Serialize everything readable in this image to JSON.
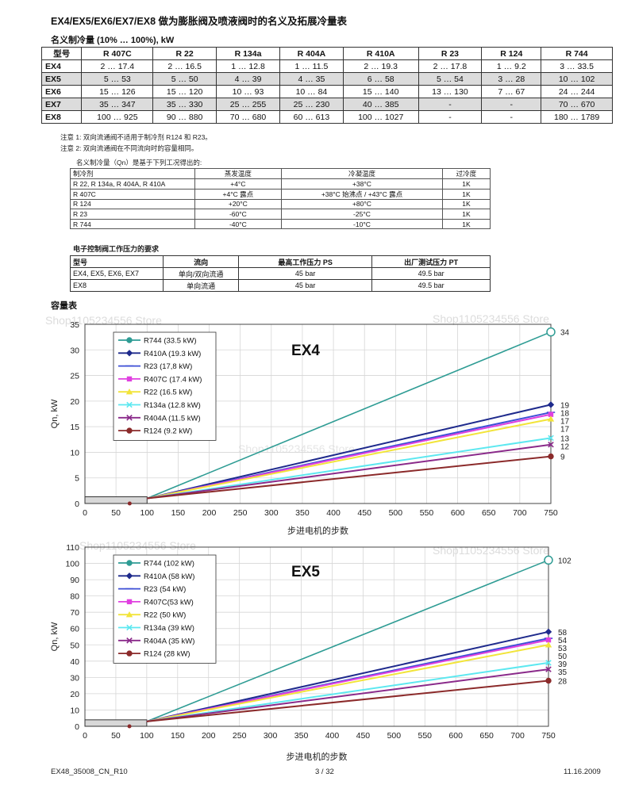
{
  "title": "EX4/EX5/EX6/EX7/EX8 做为膨胀阀及喷液阀时的名义及拓展冷量表",
  "capacity_heading": "名义制冷量 (10% … 100%), kW",
  "capacity_table": {
    "headers": [
      "型号",
      "R 407C",
      "R 22",
      "R 134a",
      "R 404A",
      "R 410A",
      "R 23",
      "R 124",
      "R 744"
    ],
    "rows": [
      [
        "EX4",
        "2 … 17.4",
        "2 … 16.5",
        "1 … 12.8",
        "1 … 11.5",
        "2 … 19.3",
        "2 … 17.8",
        "1 … 9.2",
        "3 … 33.5"
      ],
      [
        "EX5",
        "5 … 53",
        "5 … 50",
        "4 … 39",
        "4 … 35",
        "6 … 58",
        "5 … 54",
        "3 … 28",
        "10 … 102"
      ],
      [
        "EX6",
        "15 … 126",
        "15 … 120",
        "10 … 93",
        "10 … 84",
        "15 … 140",
        "13 … 130",
        "7 … 67",
        "24 … 244"
      ],
      [
        "EX7",
        "35 … 347",
        "35 … 330",
        "25 … 255",
        "25 … 230",
        "40 … 385",
        "-",
        "-",
        "70 … 670"
      ],
      [
        "EX8",
        "100 … 925",
        "90 … 880",
        "70 … 680",
        "60 … 613",
        "100 … 1027",
        "-",
        "-",
        "180 … 1789"
      ]
    ]
  },
  "notes": [
    "注意 1: 双向流通阀不适用于制冷剂 R124 和 R23。",
    "注意 2: 双向流通阀在不同流向时的容量相同。"
  ],
  "conditions_heading": "名义制冷量（Qn）是基于下列工况得出的:",
  "conditions_table": {
    "headers": [
      "制冷剂",
      "蒸发温度",
      "冷凝温度",
      "过冷度"
    ],
    "rows": [
      [
        "R 22, R 134a, R 404A, R 410A",
        "+4°C",
        "+38°C",
        "1K"
      ],
      [
        "R 407C",
        "+4°C 露点",
        "+38°C 始沸点 / +43°C 露点",
        "1K"
      ],
      [
        "R 124",
        "+20°C",
        "+80°C",
        "1K"
      ],
      [
        "R 23",
        "-60°C",
        "-25°C",
        "1K"
      ],
      [
        "R 744",
        "-40°C",
        "-10°C",
        "1K"
      ]
    ]
  },
  "pressure_heading": "电子控制阀工作压力的要求",
  "pressure_table": {
    "headers": [
      "型号",
      "流向",
      "最高工作压力 PS",
      "出厂测试压力 PT"
    ],
    "rows": [
      [
        "EX4, EX5, EX6, EX7",
        "单向/双向流通",
        "45 bar",
        "49.5 bar"
      ],
      [
        "EX8",
        "单向流通",
        "45 bar",
        "49.5 bar"
      ]
    ]
  },
  "chart_section_heading": "容量表",
  "watermark": "Shop1105234556 Store",
  "chart_data": [
    {
      "type": "line",
      "title": "EX4",
      "xlabel": "步进电机的步数",
      "ylabel": "Qn, kW",
      "x_ticks": [
        0,
        50,
        100,
        150,
        200,
        250,
        300,
        350,
        400,
        450,
        500,
        550,
        600,
        650,
        700,
        750
      ],
      "y_ticks": [
        0,
        5,
        10,
        15,
        20,
        25,
        30,
        35
      ],
      "xlim": [
        0,
        750
      ],
      "ylim": [
        0,
        35
      ],
      "legend_position": "top-left",
      "series": [
        {
          "name": "R744 (33.5 kW)",
          "color": "#2e9c94",
          "marker": "circle",
          "x": [
            100,
            750
          ],
          "y": [
            1,
            33.5
          ],
          "end_label": "34"
        },
        {
          "name": "R410A (19.3 kW)",
          "color": "#1e2a8c",
          "marker": "diamond",
          "x": [
            100,
            750
          ],
          "y": [
            1,
            19.3
          ],
          "end_label": "19"
        },
        {
          "name": "R23 (17,8 kW)",
          "color": "#3d4fd6",
          "marker": "line",
          "x": [
            100,
            750
          ],
          "y": [
            1,
            17.8
          ],
          "end_label": "18"
        },
        {
          "name": "R407C (17.4 kW)",
          "color": "#e040e0",
          "marker": "square",
          "x": [
            100,
            750
          ],
          "y": [
            1,
            17.4
          ],
          "end_label": "17"
        },
        {
          "name": "R22 (16.5 kW)",
          "color": "#f2e43a",
          "marker": "triangle",
          "x": [
            100,
            750
          ],
          "y": [
            1,
            16.5
          ],
          "end_label": "17"
        },
        {
          "name": "R134a (12.8 kW)",
          "color": "#5de8f0",
          "marker": "x",
          "x": [
            100,
            750
          ],
          "y": [
            1,
            12.8
          ],
          "end_label": "13"
        },
        {
          "name": "R404A (11.5 kW)",
          "color": "#8a2a8a",
          "marker": "x",
          "x": [
            100,
            750
          ],
          "y": [
            1,
            11.5
          ],
          "end_label": "12"
        },
        {
          "name": "R124 (9.2 kW)",
          "color": "#8b2a2a",
          "marker": "circle",
          "x": [
            100,
            750
          ],
          "y": [
            1,
            9.2
          ],
          "end_label": "9"
        }
      ]
    },
    {
      "type": "line",
      "title": "EX5",
      "xlabel": "步进电机的步数",
      "ylabel": "Qn, kW",
      "x_ticks": [
        0,
        50,
        100,
        150,
        200,
        250,
        300,
        350,
        400,
        450,
        500,
        550,
        600,
        650,
        700,
        750
      ],
      "y_ticks": [
        0,
        10,
        20,
        30,
        40,
        50,
        60,
        70,
        80,
        90,
        100,
        110
      ],
      "xlim": [
        0,
        750
      ],
      "ylim": [
        0,
        110
      ],
      "legend_position": "top-left",
      "series": [
        {
          "name": "R744 (102 kW)",
          "color": "#2e9c94",
          "marker": "circle",
          "x": [
            100,
            750
          ],
          "y": [
            3,
            102
          ],
          "end_label": "102"
        },
        {
          "name": "R410A (58 kW)",
          "color": "#1e2a8c",
          "marker": "diamond",
          "x": [
            100,
            750
          ],
          "y": [
            3,
            58
          ],
          "end_label": "58"
        },
        {
          "name": "R23 (54 kW)",
          "color": "#3d4fd6",
          "marker": "line",
          "x": [
            100,
            750
          ],
          "y": [
            3,
            54
          ],
          "end_label": "54"
        },
        {
          "name": "R407C(53 kW)",
          "color": "#e040e0",
          "marker": "square",
          "x": [
            100,
            750
          ],
          "y": [
            3,
            53
          ],
          "end_label": "53"
        },
        {
          "name": "R22 (50 kW)",
          "color": "#f2e43a",
          "marker": "triangle",
          "x": [
            100,
            750
          ],
          "y": [
            3,
            50
          ],
          "end_label": "50"
        },
        {
          "name": "R134a (39 kW)",
          "color": "#5de8f0",
          "marker": "x",
          "x": [
            100,
            750
          ],
          "y": [
            3,
            39
          ],
          "end_label": "39"
        },
        {
          "name": "R404A (35 kW)",
          "color": "#8a2a8a",
          "marker": "x",
          "x": [
            100,
            750
          ],
          "y": [
            3,
            35
          ],
          "end_label": "35"
        },
        {
          "name": "R124 (28 kW)",
          "color": "#8b2a2a",
          "marker": "circle",
          "x": [
            100,
            750
          ],
          "y": [
            3,
            28
          ],
          "end_label": "28"
        }
      ]
    }
  ],
  "footer": {
    "doc_id": "EX48_35008_CN_R10",
    "page": "3 / 32",
    "date": "11.16.2009"
  }
}
